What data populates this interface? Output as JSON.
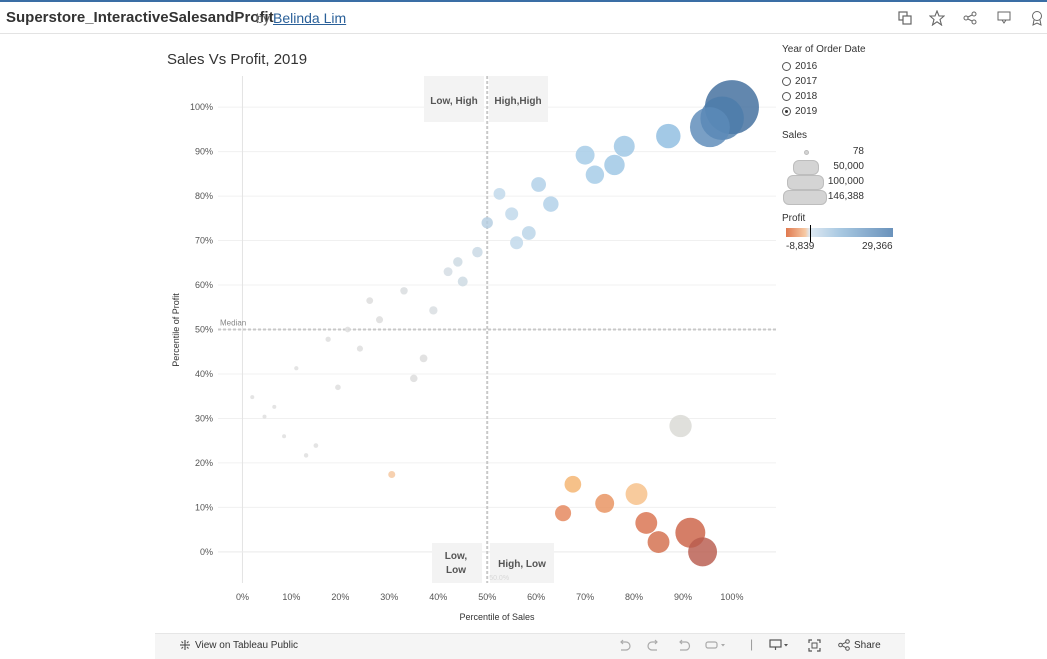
{
  "header": {
    "viz_title": "Superstore_InteractiveSalesandProfit",
    "by": "by",
    "author": "Belinda Lim",
    "icons": [
      "copy-icon",
      "star-icon",
      "share-icon",
      "download-icon",
      "badge-icon"
    ]
  },
  "chart_title": "Sales Vs Profit, 2019",
  "quadrants": {
    "top_left": "Low, High",
    "top_right": "High,High",
    "bottom_left_1": "Low,",
    "bottom_left_2": "Low",
    "bottom_right": "High, Low",
    "median": "Median",
    "median_value": "50.0%"
  },
  "chart_data": {
    "type": "scatter",
    "xlabel": "Percentile of Sales",
    "ylabel": "Percentile of Profit",
    "xlim": [
      -0.05,
      1.09
    ],
    "ylim": [
      -0.07,
      1.07
    ],
    "xticks": [
      "0%",
      "10%",
      "20%",
      "30%",
      "40%",
      "50%",
      "60%",
      "70%",
      "80%",
      "90%",
      "100%"
    ],
    "yticks": [
      "0%",
      "10%",
      "20%",
      "30%",
      "40%",
      "50%",
      "60%",
      "70%",
      "80%",
      "90%",
      "100%"
    ],
    "median_x": 0.5,
    "median_y": 0.5,
    "size_field": "Sales",
    "color_field": "Profit",
    "points": [
      {
        "x": 1.0,
        "y": 1.0,
        "size": 146388,
        "color": "#3f6d9c"
      },
      {
        "x": 0.98,
        "y": 0.975,
        "size": 95000,
        "color": "#4d7cab"
      },
      {
        "x": 0.955,
        "y": 0.955,
        "size": 80000,
        "color": "#5b8ab8"
      },
      {
        "x": 0.87,
        "y": 0.935,
        "size": 30000,
        "color": "#8fbde0"
      },
      {
        "x": 0.78,
        "y": 0.912,
        "size": 22000,
        "color": "#9cc6e4"
      },
      {
        "x": 0.76,
        "y": 0.87,
        "size": 21000,
        "color": "#9cc6e4"
      },
      {
        "x": 0.7,
        "y": 0.892,
        "size": 18000,
        "color": "#a4cbe6"
      },
      {
        "x": 0.72,
        "y": 0.848,
        "size": 17000,
        "color": "#a4cbe6"
      },
      {
        "x": 0.63,
        "y": 0.782,
        "size": 12000,
        "color": "#b0d0e8"
      },
      {
        "x": 0.605,
        "y": 0.826,
        "size": 11000,
        "color": "#b0d0e8"
      },
      {
        "x": 0.585,
        "y": 0.717,
        "size": 9500,
        "color": "#b9d4e8"
      },
      {
        "x": 0.55,
        "y": 0.76,
        "size": 8500,
        "color": "#bfd8ea"
      },
      {
        "x": 0.56,
        "y": 0.695,
        "size": 8500,
        "color": "#bfd8ea"
      },
      {
        "x": 0.525,
        "y": 0.805,
        "size": 7000,
        "color": "#bfd8ea"
      },
      {
        "x": 0.5,
        "y": 0.74,
        "size": 6500,
        "color": "#b4cde0"
      },
      {
        "x": 0.48,
        "y": 0.674,
        "size": 5500,
        "color": "#c8d8e4"
      },
      {
        "x": 0.45,
        "y": 0.608,
        "size": 5000,
        "color": "#ccd9e2"
      },
      {
        "x": 0.44,
        "y": 0.652,
        "size": 4500,
        "color": "#ccd9e2"
      },
      {
        "x": 0.42,
        "y": 0.63,
        "size": 4000,
        "color": "#d3dce3"
      },
      {
        "x": 0.39,
        "y": 0.543,
        "size": 3500,
        "color": "#d8dde1"
      },
      {
        "x": 0.33,
        "y": 0.587,
        "size": 2800,
        "color": "#d8dcde"
      },
      {
        "x": 0.28,
        "y": 0.522,
        "size": 2500,
        "color": "#dcdcdc"
      },
      {
        "x": 0.26,
        "y": 0.565,
        "size": 2300,
        "color": "#dcdcdc"
      },
      {
        "x": 0.37,
        "y": 0.435,
        "size": 3000,
        "color": "#dcdcdc"
      },
      {
        "x": 0.35,
        "y": 0.39,
        "size": 2800,
        "color": "#dcdcdc"
      },
      {
        "x": 0.24,
        "y": 0.457,
        "size": 1900,
        "color": "#dddddd"
      },
      {
        "x": 0.215,
        "y": 0.5,
        "size": 1700,
        "color": "#dddddd"
      },
      {
        "x": 0.175,
        "y": 0.478,
        "size": 1400,
        "color": "#dddddd"
      },
      {
        "x": 0.195,
        "y": 0.37,
        "size": 1600,
        "color": "#dddddd"
      },
      {
        "x": 0.11,
        "y": 0.413,
        "size": 900,
        "color": "#dedede"
      },
      {
        "x": 0.065,
        "y": 0.326,
        "size": 700,
        "color": "#dedede"
      },
      {
        "x": 0.085,
        "y": 0.26,
        "size": 800,
        "color": "#dedede"
      },
      {
        "x": 0.045,
        "y": 0.304,
        "size": 500,
        "color": "#dedede"
      },
      {
        "x": 0.02,
        "y": 0.348,
        "size": 300,
        "color": "#dedede"
      },
      {
        "x": 0.13,
        "y": 0.217,
        "size": 1000,
        "color": "#dedede"
      },
      {
        "x": 0.15,
        "y": 0.239,
        "size": 1100,
        "color": "#dedede"
      },
      {
        "x": 0.305,
        "y": 0.174,
        "size": 2500,
        "color": "#f5c79f"
      },
      {
        "x": 0.895,
        "y": 0.283,
        "size": 25000,
        "color": "#d9d9d4"
      },
      {
        "x": 0.675,
        "y": 0.152,
        "size": 14000,
        "color": "#f4b36f"
      },
      {
        "x": 0.805,
        "y": 0.13,
        "size": 24000,
        "color": "#f6c088"
      },
      {
        "x": 0.74,
        "y": 0.109,
        "size": 18000,
        "color": "#e8915e"
      },
      {
        "x": 0.655,
        "y": 0.087,
        "size": 13000,
        "color": "#e4855a"
      },
      {
        "x": 0.825,
        "y": 0.065,
        "size": 24000,
        "color": "#d9724e"
      },
      {
        "x": 0.85,
        "y": 0.022,
        "size": 24000,
        "color": "#d36e4c"
      },
      {
        "x": 0.915,
        "y": 0.043,
        "size": 45000,
        "color": "#cc6245"
      },
      {
        "x": 0.94,
        "y": 0.0,
        "size": 42000,
        "color": "#b85c4e"
      }
    ]
  },
  "legend": {
    "year_title": "Year of Order Date",
    "years": [
      {
        "label": "2016",
        "selected": false
      },
      {
        "label": "2017",
        "selected": false
      },
      {
        "label": "2018",
        "selected": false
      },
      {
        "label": "2019",
        "selected": true
      }
    ],
    "sales_title": "Sales",
    "sales_sizes": [
      "78",
      "50,000",
      "100,000",
      "146,388"
    ],
    "profit_title": "Profit",
    "profit_min": "-8,839",
    "profit_max": "29,366"
  },
  "footer": {
    "view_label": "View on Tableau Public",
    "share_label": "Share",
    "icons": [
      "undo-icon",
      "redo-icon",
      "revert-icon",
      "refresh-icon",
      "present-icon",
      "fullscreen-icon",
      "share-icon"
    ]
  }
}
